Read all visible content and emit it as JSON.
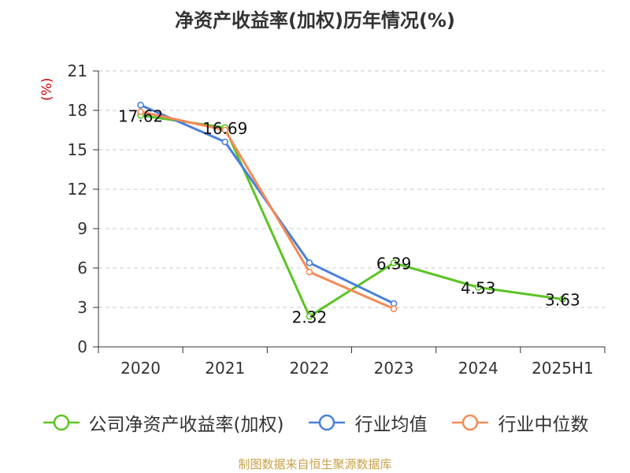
{
  "title": "净资产收益率(加权)历年情况(%)",
  "source": "制图数据来自恒生聚源数据库",
  "chart_data": {
    "type": "line",
    "title": "净资产收益率(加权)历年情况(%)",
    "ylabel": "(%)",
    "categories": [
      "2020",
      "2021",
      "2022",
      "2023",
      "2024",
      "2025H1"
    ],
    "yticks": [
      0,
      3,
      6,
      9,
      12,
      15,
      18,
      21
    ],
    "ylim": [
      0,
      21
    ],
    "grid": true,
    "legend_position": "bottom",
    "series": [
      {
        "name": "公司净资产收益率(加权)",
        "color": "#5bc424",
        "values": [
          17.62,
          16.69,
          2.32,
          6.39,
          4.53,
          3.63
        ],
        "labels": [
          "17.62",
          "16.69",
          "2.32",
          "6.39",
          "4.53",
          "3.63"
        ]
      },
      {
        "name": "行业均值",
        "color": "#4a80d9",
        "values": [
          18.4,
          15.6,
          6.4,
          3.3,
          null,
          null
        ]
      },
      {
        "name": "行业中位数",
        "color": "#f58a55",
        "values": [
          17.9,
          16.5,
          5.7,
          2.9,
          null,
          null
        ]
      }
    ]
  }
}
